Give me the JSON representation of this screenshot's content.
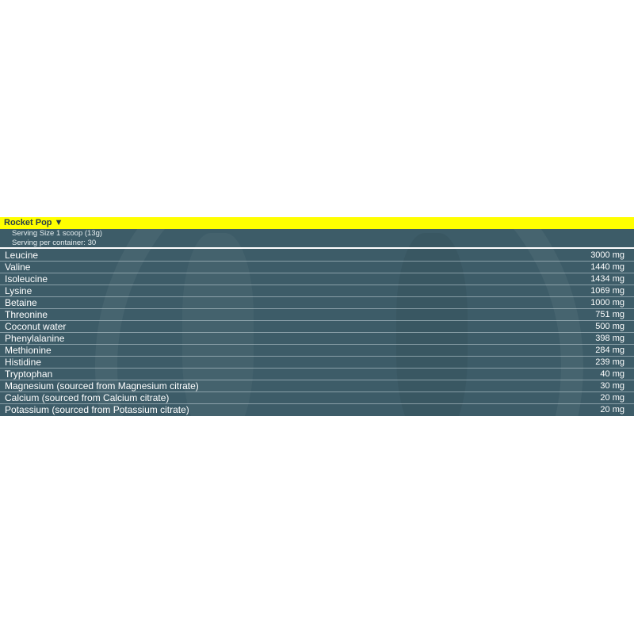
{
  "panel": {
    "title": "Rocket Pop ▼",
    "serving_size": "Serving Size 1 scoop (13g)",
    "servings_per_container": "Serving per container: 30",
    "colors": {
      "header": "#ffff00",
      "background": "#3d5c68"
    },
    "rows": [
      {
        "name": "Leucine",
        "amount": "3000 mg"
      },
      {
        "name": "Valine",
        "amount": "1440 mg"
      },
      {
        "name": "Isoleucine",
        "amount": "1434 mg"
      },
      {
        "name": "Lysine",
        "amount": "1069 mg"
      },
      {
        "name": "Betaine",
        "amount": "1000 mg"
      },
      {
        "name": "Threonine",
        "amount": "751 mg"
      },
      {
        "name": "Coconut water",
        "amount": "500 mg"
      },
      {
        "name": "Phenylalanine",
        "amount": "398 mg"
      },
      {
        "name": "Methionine",
        "amount": "284 mg"
      },
      {
        "name": "Histidine",
        "amount": "239 mg"
      },
      {
        "name": "Tryptophan",
        "amount": "40 mg"
      },
      {
        "name": "Magnesium (sourced from Magnesium citrate)",
        "amount": "30 mg"
      },
      {
        "name": "Calcium (sourced from Calcium citrate)",
        "amount": "20 mg"
      },
      {
        "name": "Potassium (sourced from Potassium citrate)",
        "amount": "20 mg"
      }
    ]
  }
}
